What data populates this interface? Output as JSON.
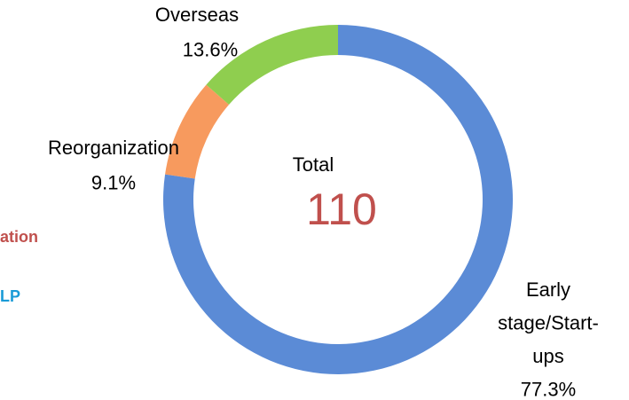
{
  "chart_data": {
    "type": "donut",
    "categories": [
      "Early stage/Start-ups",
      "Reorganization",
      "Overseas"
    ],
    "values": [
      77.3,
      9.1,
      13.6
    ],
    "value_labels": [
      "77.3%",
      "9.1%",
      "13.6%"
    ],
    "colors": [
      "#5b8bd6",
      "#f79a5e",
      "#8fce4f"
    ],
    "center_label": "Total",
    "center_value": 110
  },
  "side_texts": [
    {
      "text": "ation",
      "color": "#c0504d"
    },
    {
      "text": "LP",
      "color": "#1a9bd7"
    }
  ]
}
